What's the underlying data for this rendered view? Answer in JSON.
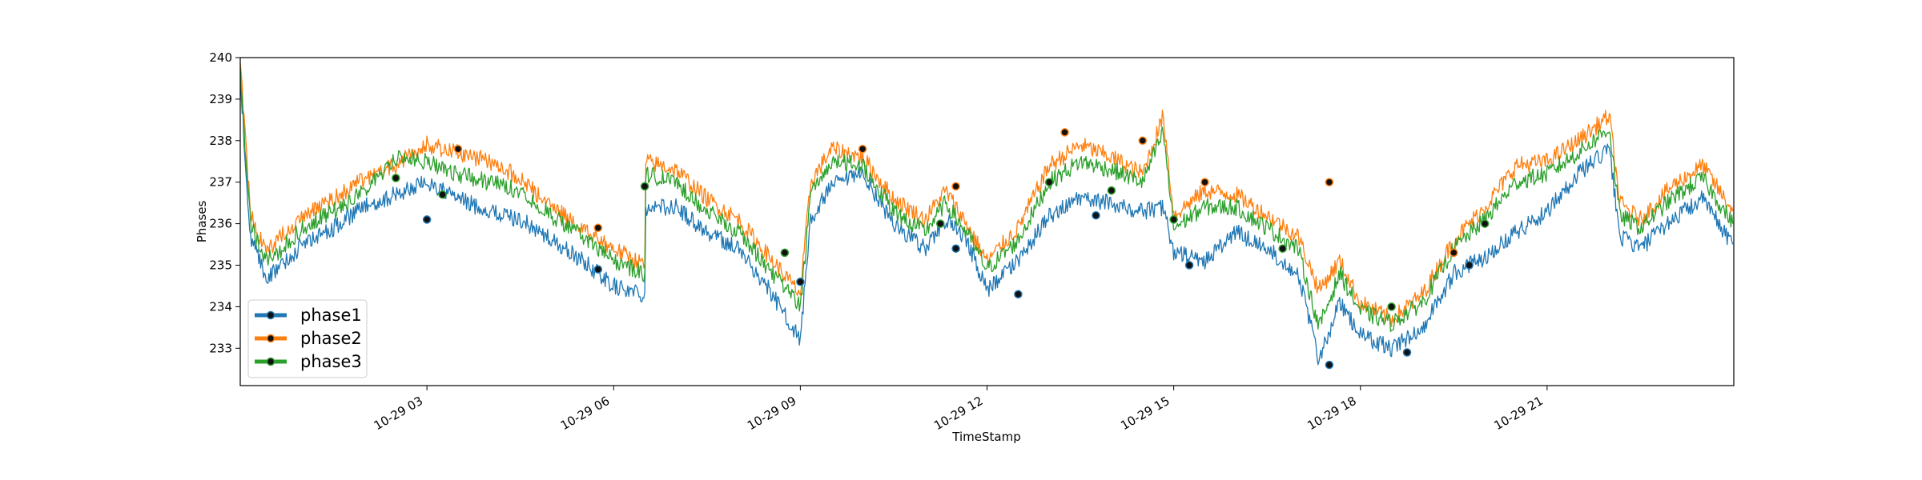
{
  "chart_data": {
    "type": "line",
    "title": "",
    "xlabel": "TimeStamp",
    "ylabel": "Phases",
    "xlim": [
      "2021-10-29 00:00",
      "2021-10-30 00:00"
    ],
    "ylim": [
      232.1,
      240
    ],
    "x_ticks": [
      "2021-10-29 03:00",
      "2021-10-29 06:00",
      "2021-10-29 09:00",
      "2021-10-29 12:00",
      "2021-10-29 15:00",
      "2021-10-29 18:00",
      "2021-10-29 21:00"
    ],
    "x_tick_labels": [
      "10-29 03",
      "10-29 06",
      "10-29 09",
      "10-29 12",
      "10-29 15",
      "10-29 18",
      "10-29 21"
    ],
    "y_ticks": [
      233,
      234,
      235,
      236,
      237,
      238,
      239,
      240
    ],
    "y_tick_labels": [
      "233",
      "234",
      "235",
      "236",
      "237",
      "238",
      "239",
      "240"
    ],
    "grid": false,
    "legend_position": "lower-left",
    "marker_color": "#111111",
    "series": [
      {
        "name": "phase1",
        "color": "#1f77b4",
        "x": [
          "2021-10-29 00:00",
          "2021-10-29 00:10",
          "2021-10-29 00:25",
          "2021-10-29 00:40",
          "2021-10-29 01:00",
          "2021-10-29 01:30",
          "2021-10-29 02:00",
          "2021-10-29 02:30",
          "2021-10-29 03:00",
          "2021-10-29 03:30",
          "2021-10-29 04:00",
          "2021-10-29 04:30",
          "2021-10-29 05:00",
          "2021-10-29 05:30",
          "2021-10-29 06:00",
          "2021-10-29 06:30",
          "2021-10-29 06:31",
          "2021-10-29 07:00",
          "2021-10-29 07:30",
          "2021-10-29 08:00",
          "2021-10-29 08:30",
          "2021-10-29 09:00",
          "2021-10-29 09:10",
          "2021-10-29 09:30",
          "2021-10-29 10:00",
          "2021-10-29 10:30",
          "2021-10-29 11:00",
          "2021-10-29 11:20",
          "2021-10-29 11:40",
          "2021-10-29 12:00",
          "2021-10-29 12:30",
          "2021-10-29 13:00",
          "2021-10-29 13:30",
          "2021-10-29 14:00",
          "2021-10-29 14:30",
          "2021-10-29 14:50",
          "2021-10-29 15:00",
          "2021-10-29 15:30",
          "2021-10-29 16:00",
          "2021-10-29 16:30",
          "2021-10-29 17:00",
          "2021-10-29 17:20",
          "2021-10-29 17:40",
          "2021-10-29 18:00",
          "2021-10-29 18:30",
          "2021-10-29 19:00",
          "2021-10-29 19:30",
          "2021-10-29 20:00",
          "2021-10-29 20:30",
          "2021-10-29 21:00",
          "2021-10-29 21:30",
          "2021-10-29 22:00",
          "2021-10-29 22:10",
          "2021-10-29 22:30",
          "2021-10-29 23:00",
          "2021-10-29 23:30",
          "2021-10-29 23:59"
        ],
        "values": [
          239.5,
          235.6,
          234.7,
          235.0,
          235.5,
          235.9,
          236.4,
          236.7,
          237.0,
          236.6,
          236.3,
          236.1,
          235.6,
          235.1,
          234.5,
          234.3,
          236.4,
          236.4,
          235.8,
          235.4,
          234.4,
          233.2,
          236.1,
          236.9,
          237.2,
          236.0,
          235.4,
          236.1,
          235.6,
          234.4,
          235.1,
          236.2,
          236.6,
          236.5,
          236.3,
          236.4,
          235.3,
          235.1,
          235.8,
          235.4,
          234.8,
          232.7,
          234.1,
          233.3,
          233.0,
          233.5,
          234.8,
          235.2,
          235.8,
          236.3,
          237.2,
          237.8,
          235.7,
          235.4,
          236.1,
          236.6,
          235.5
        ]
      },
      {
        "name": "phase2",
        "color": "#ff7f0e",
        "x": [
          "2021-10-29 00:00",
          "2021-10-29 00:10",
          "2021-10-29 00:25",
          "2021-10-29 00:40",
          "2021-10-29 01:00",
          "2021-10-29 01:30",
          "2021-10-29 02:00",
          "2021-10-29 02:30",
          "2021-10-29 03:00",
          "2021-10-29 03:30",
          "2021-10-29 04:00",
          "2021-10-29 04:30",
          "2021-10-29 05:00",
          "2021-10-29 05:30",
          "2021-10-29 06:00",
          "2021-10-29 06:30",
          "2021-10-29 06:31",
          "2021-10-29 07:00",
          "2021-10-29 07:30",
          "2021-10-29 08:00",
          "2021-10-29 08:30",
          "2021-10-29 09:00",
          "2021-10-29 09:10",
          "2021-10-29 09:30",
          "2021-10-29 10:00",
          "2021-10-29 10:30",
          "2021-10-29 11:00",
          "2021-10-29 11:20",
          "2021-10-29 11:40",
          "2021-10-29 12:00",
          "2021-10-29 12:30",
          "2021-10-29 13:00",
          "2021-10-29 13:30",
          "2021-10-29 14:00",
          "2021-10-29 14:30",
          "2021-10-29 14:50",
          "2021-10-29 15:00",
          "2021-10-29 15:30",
          "2021-10-29 16:00",
          "2021-10-29 16:30",
          "2021-10-29 17:00",
          "2021-10-29 17:20",
          "2021-10-29 17:40",
          "2021-10-29 18:00",
          "2021-10-29 18:30",
          "2021-10-29 19:00",
          "2021-10-29 19:30",
          "2021-10-29 20:00",
          "2021-10-29 20:30",
          "2021-10-29 21:00",
          "2021-10-29 21:30",
          "2021-10-29 22:00",
          "2021-10-29 22:10",
          "2021-10-29 22:30",
          "2021-10-29 23:00",
          "2021-10-29 23:30",
          "2021-10-29 23:59"
        ],
        "values": [
          239.8,
          236.2,
          235.3,
          235.7,
          236.2,
          236.6,
          237.1,
          237.4,
          237.9,
          237.7,
          237.5,
          237.1,
          236.4,
          235.9,
          235.4,
          235.0,
          237.5,
          237.3,
          236.6,
          236.1,
          235.2,
          234.3,
          237.0,
          237.8,
          237.6,
          236.6,
          236.1,
          236.8,
          236.0,
          235.1,
          235.9,
          237.4,
          237.9,
          237.6,
          237.2,
          238.6,
          236.2,
          236.8,
          236.7,
          236.2,
          235.7,
          234.4,
          235.1,
          234.1,
          233.7,
          234.3,
          235.6,
          236.4,
          237.4,
          237.5,
          238.0,
          238.6,
          236.5,
          236.1,
          236.9,
          237.4,
          236.3
        ]
      },
      {
        "name": "phase3",
        "color": "#2ca02c",
        "x": [
          "2021-10-29 00:00",
          "2021-10-29 00:10",
          "2021-10-29 00:25",
          "2021-10-29 00:40",
          "2021-10-29 01:00",
          "2021-10-29 01:30",
          "2021-10-29 02:00",
          "2021-10-29 02:30",
          "2021-10-29 03:00",
          "2021-10-29 03:30",
          "2021-10-29 04:00",
          "2021-10-29 04:30",
          "2021-10-29 05:00",
          "2021-10-29 05:30",
          "2021-10-29 06:00",
          "2021-10-29 06:30",
          "2021-10-29 06:31",
          "2021-10-29 07:00",
          "2021-10-29 07:30",
          "2021-10-29 08:00",
          "2021-10-29 08:30",
          "2021-10-29 09:00",
          "2021-10-29 09:10",
          "2021-10-29 09:30",
          "2021-10-29 10:00",
          "2021-10-29 10:30",
          "2021-10-29 11:00",
          "2021-10-29 11:20",
          "2021-10-29 11:40",
          "2021-10-29 12:00",
          "2021-10-29 12:30",
          "2021-10-29 13:00",
          "2021-10-29 13:30",
          "2021-10-29 14:00",
          "2021-10-29 14:30",
          "2021-10-29 14:50",
          "2021-10-29 15:00",
          "2021-10-29 15:30",
          "2021-10-29 16:00",
          "2021-10-29 16:30",
          "2021-10-29 17:00",
          "2021-10-29 17:20",
          "2021-10-29 17:40",
          "2021-10-29 18:00",
          "2021-10-29 18:30",
          "2021-10-29 19:00",
          "2021-10-29 19:30",
          "2021-10-29 20:00",
          "2021-10-29 20:30",
          "2021-10-29 21:00",
          "2021-10-29 21:30",
          "2021-10-29 22:00",
          "2021-10-29 22:10",
          "2021-10-29 22:30",
          "2021-10-29 23:00",
          "2021-10-29 23:30",
          "2021-10-29 23:59"
        ],
        "values": [
          239.6,
          236.0,
          235.1,
          235.4,
          235.9,
          236.3,
          236.8,
          237.6,
          237.5,
          237.2,
          237.0,
          236.8,
          236.2,
          235.7,
          235.1,
          234.8,
          237.2,
          237.0,
          236.3,
          235.8,
          234.9,
          234.0,
          236.7,
          237.5,
          237.4,
          236.3,
          235.8,
          236.5,
          235.8,
          234.9,
          235.6,
          237.0,
          237.5,
          237.3,
          237.0,
          238.2,
          235.9,
          236.4,
          236.4,
          235.9,
          235.4,
          233.5,
          234.8,
          233.9,
          233.6,
          234.1,
          235.4,
          236.1,
          237.0,
          237.2,
          237.7,
          238.3,
          236.2,
          235.9,
          236.6,
          237.1,
          236.0
        ]
      }
    ],
    "markers": [
      {
        "series": "phase1",
        "x": [
          "2021-10-29 03:00",
          "2021-10-29 05:45",
          "2021-10-29 09:00",
          "2021-10-29 11:30",
          "2021-10-29 12:30",
          "2021-10-29 13:45",
          "2021-10-29 15:15",
          "2021-10-29 17:30",
          "2021-10-29 18:45",
          "2021-10-29 19:45"
        ],
        "values": [
          236.1,
          234.9,
          234.6,
          235.4,
          234.3,
          236.2,
          235.0,
          232.6,
          232.9,
          235.0
        ]
      },
      {
        "series": "phase2",
        "x": [
          "2021-10-29 03:30",
          "2021-10-29 05:45",
          "2021-10-29 10:00",
          "2021-10-29 11:30",
          "2021-10-29 13:15",
          "2021-10-29 14:30",
          "2021-10-29 15:30",
          "2021-10-29 17:30",
          "2021-10-29 19:30"
        ],
        "values": [
          237.8,
          235.9,
          237.8,
          236.9,
          238.2,
          238.0,
          237.0,
          237.0,
          235.3
        ]
      },
      {
        "series": "phase3",
        "x": [
          "2021-10-29 02:30",
          "2021-10-29 03:15",
          "2021-10-29 06:30",
          "2021-10-29 08:45",
          "2021-10-29 11:15",
          "2021-10-29 13:00",
          "2021-10-29 14:00",
          "2021-10-29 15:00",
          "2021-10-29 16:45",
          "2021-10-29 18:30",
          "2021-10-29 20:00"
        ],
        "values": [
          237.1,
          236.7,
          236.9,
          235.3,
          236.0,
          237.0,
          236.8,
          236.1,
          235.4,
          234.0,
          236.0
        ]
      }
    ]
  }
}
